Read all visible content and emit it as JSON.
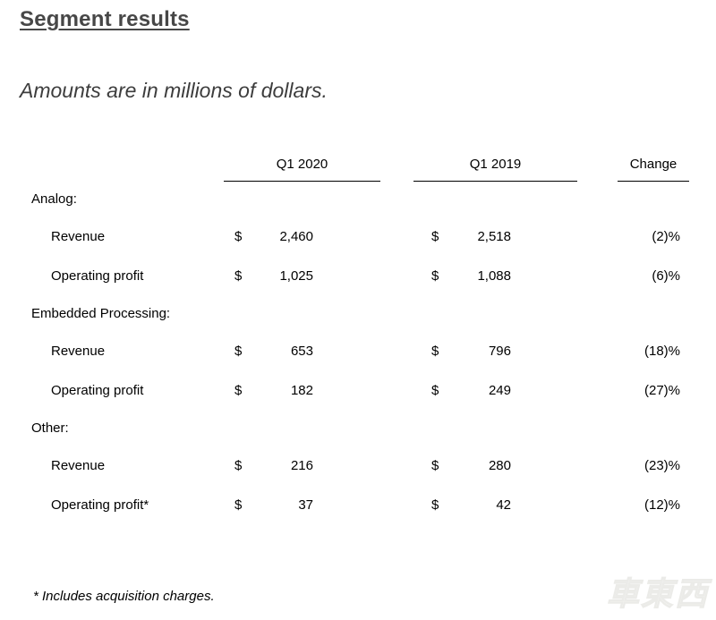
{
  "page": {
    "title": "Segment results",
    "subtitle": "Amounts are in millions of dollars.",
    "footnote": "* Includes acquisition charges.",
    "watermark": "車東西"
  },
  "colors": {
    "background": "#ffffff",
    "title_text": "#474747",
    "subtitle_text": "#3d3d3d",
    "table_text": "#000000",
    "rule_lines": "#000000",
    "watermark": "#f0f0ee"
  },
  "table": {
    "columns": [
      "Q1 2020",
      "Q1 2019",
      "Change"
    ],
    "currency_symbol": "$",
    "sections": [
      {
        "label": "Analog:",
        "rows": [
          {
            "label": "Revenue",
            "q1_2020": "2,460",
            "q1_2019": "2,518",
            "change": "(2)%"
          },
          {
            "label": "Operating profit",
            "q1_2020": "1,025",
            "q1_2019": "1,088",
            "change": "(6)%"
          }
        ]
      },
      {
        "label": "Embedded Processing:",
        "rows": [
          {
            "label": "Revenue",
            "q1_2020": "653",
            "q1_2019": "796",
            "change": "(18)%"
          },
          {
            "label": "Operating profit",
            "q1_2020": "182",
            "q1_2019": "249",
            "change": "(27)%"
          }
        ]
      },
      {
        "label": "Other:",
        "rows": [
          {
            "label": "Revenue",
            "q1_2020": "216",
            "q1_2019": "280",
            "change": "(23)%"
          },
          {
            "label": "Operating profit*",
            "q1_2020": "37",
            "q1_2019": "42",
            "change": "(12)%"
          }
        ]
      }
    ]
  }
}
